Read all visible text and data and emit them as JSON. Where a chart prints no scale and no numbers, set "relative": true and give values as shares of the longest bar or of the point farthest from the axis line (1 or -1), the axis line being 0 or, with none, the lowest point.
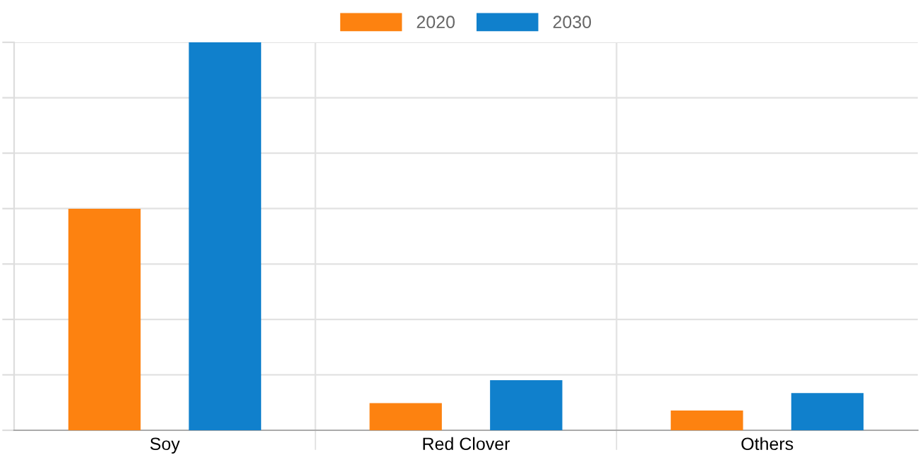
{
  "chart_data": {
    "type": "bar",
    "relative": true,
    "categories": [
      "Soy",
      "Red Clover",
      "Others"
    ],
    "series": [
      {
        "name": "2020",
        "color": "#fd8210",
        "values": [
          0.571,
          0.07,
          0.051
        ]
      },
      {
        "name": "2030",
        "color": "#1080cc",
        "values": [
          1,
          0.129,
          0.096
        ]
      }
    ],
    "grid": true,
    "legend": "top"
  }
}
